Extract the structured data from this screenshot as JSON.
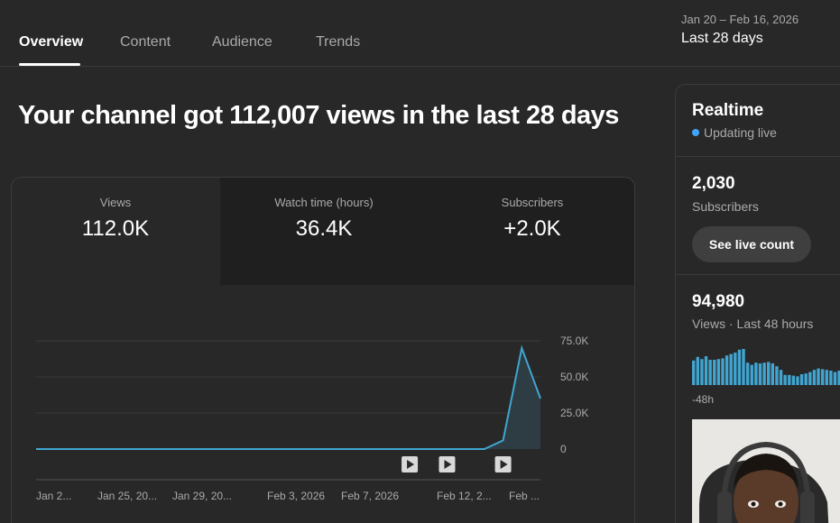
{
  "tabs": [
    {
      "label": "Overview",
      "active": true
    },
    {
      "label": "Content",
      "active": false
    },
    {
      "label": "Audience",
      "active": false
    },
    {
      "label": "Trends",
      "active": false
    }
  ],
  "date_range": "Jan 20 – Feb 16, 2026",
  "date_period": "Last 28 days",
  "headline": "Your channel got 112,007 views in the last 28 days",
  "metrics": [
    {
      "label": "Views",
      "value": "112.0K"
    },
    {
      "label": "Watch time (hours)",
      "value": "36.4K"
    },
    {
      "label": "Subscribers",
      "value": "+2.0K"
    }
  ],
  "chart_data": {
    "type": "area",
    "x": [
      "Jan 20",
      "Jan 21",
      "Jan 22",
      "Jan 23",
      "Jan 24",
      "Jan 25",
      "Jan 26",
      "Jan 27",
      "Jan 28",
      "Jan 29",
      "Jan 30",
      "Jan 31",
      "Feb 1",
      "Feb 2",
      "Feb 3",
      "Feb 4",
      "Feb 5",
      "Feb 6",
      "Feb 7",
      "Feb 8",
      "Feb 9",
      "Feb 10",
      "Feb 11",
      "Feb 12",
      "Feb 13",
      "Feb 14",
      "Feb 15",
      "Feb 16"
    ],
    "values": [
      0,
      0,
      0,
      0,
      0,
      0,
      0,
      0,
      0,
      0,
      0,
      0,
      0,
      0,
      0,
      0,
      0,
      0,
      0,
      0,
      0,
      0,
      0,
      0,
      0,
      6000,
      70000,
      35000
    ],
    "ylim": [
      0,
      75000
    ],
    "y_ticks": [
      "0",
      "25.0K",
      "50.0K",
      "75.0K"
    ],
    "x_tick_labels": [
      "Jan 2...",
      "Jan 25, 20...",
      "Jan 29, 20...",
      "Feb 3, 2026",
      "Feb 7, 2026",
      "Feb 12, 2...",
      "Feb ..."
    ],
    "video_markers_index": [
      20,
      22,
      25
    ],
    "line_color": "#41a5d0",
    "grid": true
  },
  "realtime": {
    "title": "Realtime",
    "status": "Updating live",
    "subscribers_value": "2,030",
    "subscribers_label": "Subscribers",
    "live_button": "See live count",
    "views_value": "94,980",
    "views_label": "Views · Last 48 hours",
    "axis_start": "-48h",
    "bar_values": [
      0.68,
      0.78,
      0.72,
      0.8,
      0.7,
      0.7,
      0.72,
      0.74,
      0.82,
      0.86,
      0.9,
      0.98,
      1.0,
      0.62,
      0.56,
      0.62,
      0.6,
      0.62,
      0.64,
      0.6,
      0.52,
      0.42,
      0.28,
      0.28,
      0.26,
      0.24,
      0.3,
      0.32,
      0.36,
      0.42,
      0.46,
      0.44,
      0.42,
      0.4,
      0.36,
      0.4
    ]
  }
}
